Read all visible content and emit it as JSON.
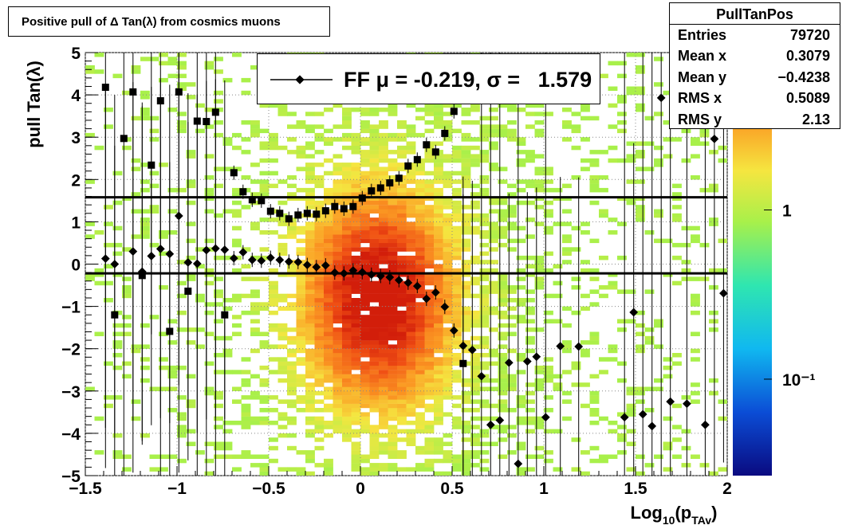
{
  "title": "Positive pull of Δ Tan(λ) from cosmics muons",
  "stats": {
    "name": "PullTanPos",
    "rows": [
      {
        "label": "Entries",
        "value": "79720"
      },
      {
        "label": "Mean x",
        "value": "0.3079"
      },
      {
        "label": "Mean y",
        "value": "−0.4238"
      },
      {
        "label": "RMS x",
        "value": "0.5089"
      },
      {
        "label": "RMS y",
        "value": "2.13"
      }
    ]
  },
  "legend": {
    "label": "FF μ = -0.219, σ =   1.579"
  },
  "chart_data": {
    "type": "scatter",
    "background": "heatmap",
    "xlabel": "Log10(pTAv)",
    "ylabel": "pull Tan(λ)",
    "xlim": [
      -1.5,
      2
    ],
    "ylim": [
      -5,
      5
    ],
    "x_ticks": [
      "−1.5",
      "−1",
      "−0.5",
      "0",
      "0.5",
      "1",
      "1.5",
      "2"
    ],
    "y_ticks": [
      "−5",
      "−4",
      "−3",
      "−2",
      "−1",
      "0",
      "1",
      "2",
      "3",
      "4",
      "5"
    ],
    "grid": true,
    "colorbar_log": true,
    "colorbar_labels": [
      "10⁻¹",
      "1"
    ],
    "colorbar_values": [
      0.1,
      1
    ],
    "hlines": [
      1.579,
      -0.219
    ],
    "series": [
      {
        "marker": "square",
        "x": [
          -1.39,
          -1.34,
          -1.29,
          -1.24,
          -1.19,
          -1.14,
          -1.09,
          -1.04,
          -0.99,
          -0.94,
          -0.89,
          -0.84,
          -0.79,
          -0.74,
          -0.69,
          -0.64,
          -0.59,
          -0.54,
          -0.49,
          -0.44,
          -0.39,
          -0.34,
          -0.29,
          -0.24,
          -0.19,
          -0.14,
          -0.09,
          -0.04,
          0.01,
          0.06,
          0.11,
          0.16,
          0.21,
          0.26,
          0.31,
          0.36,
          0.41,
          0.46,
          0.51,
          0.56
        ],
        "y": [
          4.18,
          -1.2,
          2.97,
          4.07,
          -0.27,
          2.34,
          3.86,
          -1.59,
          4.07,
          -0.64,
          3.38,
          3.37,
          3.59,
          -1.2,
          2.16,
          1.71,
          1.52,
          1.5,
          1.25,
          1.2,
          1.07,
          1.16,
          1.2,
          1.18,
          1.26,
          1.36,
          1.31,
          1.36,
          1.56,
          1.73,
          1.8,
          1.92,
          2.03,
          2.32,
          2.47,
          2.82,
          2.65,
          3.09,
          3.61,
          -2.35
        ]
      },
      {
        "marker": "diamond",
        "x": [
          -1.39,
          -1.34,
          -1.24,
          -1.19,
          -1.14,
          -1.09,
          -1.04,
          -0.99,
          -0.94,
          -0.89,
          -0.84,
          -0.79,
          -0.74,
          -0.69,
          -0.64,
          -0.59,
          -0.54,
          -0.49,
          -0.44,
          -0.39,
          -0.34,
          -0.29,
          -0.24,
          -0.19,
          -0.14,
          -0.09,
          -0.04,
          0.01,
          0.06,
          0.11,
          0.16,
          0.21,
          0.26,
          0.31,
          0.36,
          0.41,
          0.46,
          0.51,
          0.56,
          0.61,
          0.66,
          0.71,
          0.76,
          0.81,
          0.86,
          0.91,
          0.96,
          1.01,
          1.09,
          1.19,
          1.44,
          1.49,
          1.54,
          1.59,
          1.64,
          1.69,
          1.78,
          1.88,
          1.93,
          1.98
        ],
        "y": [
          0.13,
          0.0,
          0.3,
          -0.18,
          0.19,
          0.36,
          0.24,
          1.14,
          0.04,
          0.01,
          0.33,
          0.37,
          0.34,
          0.14,
          0.28,
          0.1,
          0.08,
          0.15,
          0.1,
          0.06,
          0.05,
          -0.02,
          -0.07,
          -0.03,
          -0.2,
          -0.22,
          -0.15,
          -0.19,
          -0.25,
          -0.28,
          -0.31,
          -0.38,
          -0.44,
          -0.52,
          -0.82,
          -0.67,
          -1.01,
          -1.57,
          -1.93,
          -2.03,
          -2.65,
          -3.8,
          -3.69,
          -2.33,
          -4.72,
          -2.3,
          -2.19,
          -3.62,
          -1.94,
          -1.95,
          -3.62,
          -1.14,
          -3.55,
          -3.83,
          3.93,
          -3.25,
          -3.3,
          -3.8,
          2.96,
          -0.69
        ]
      }
    ]
  }
}
